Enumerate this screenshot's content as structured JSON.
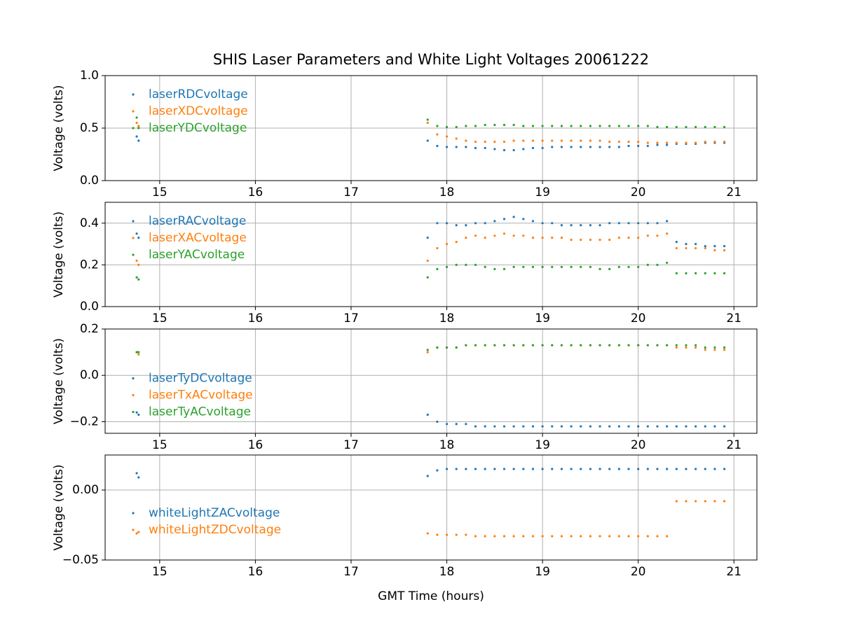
{
  "chart_data": [
    {
      "type": "scatter",
      "title": "SHIS Laser Parameters and White Light Voltages 20061222",
      "ylabel": "Voltage (volts)",
      "x": [
        14.76,
        14.78,
        17.8,
        17.9,
        18.0,
        18.1,
        18.2,
        18.3,
        18.4,
        18.5,
        18.6,
        18.7,
        18.8,
        18.9,
        19.0,
        19.1,
        19.2,
        19.3,
        19.4,
        19.5,
        19.6,
        19.7,
        19.8,
        19.9,
        20.0,
        20.1,
        20.2,
        20.3,
        20.4,
        20.5,
        20.6,
        20.7,
        20.8,
        20.9
      ],
      "xlim": [
        14.43,
        21.24
      ],
      "xticks": [
        15,
        16,
        17,
        18,
        19,
        20,
        21
      ],
      "ylim": [
        0,
        1
      ],
      "yticks": [
        {
          "value": 0,
          "label": "0.0"
        },
        {
          "value": 0.5,
          "label": "0.5"
        },
        {
          "value": 1,
          "label": "1.0"
        }
      ],
      "grid": true,
      "legend": "upper left",
      "series": [
        {
          "name": "laserRDCvoltage",
          "color": "#1f77b4",
          "values": [
            0.42,
            0.38,
            0.38,
            0.33,
            0.32,
            0.32,
            0.32,
            0.31,
            0.31,
            0.3,
            0.29,
            0.29,
            0.3,
            0.31,
            0.31,
            0.32,
            0.32,
            0.32,
            0.32,
            0.32,
            0.32,
            0.32,
            0.32,
            0.33,
            0.33,
            0.33,
            0.34,
            0.34,
            0.35,
            0.35,
            0.35,
            0.36,
            0.36,
            0.36
          ]
        },
        {
          "name": "laserXDCvoltage",
          "color": "#ff7f0e",
          "values": [
            0.55,
            0.52,
            0.55,
            0.44,
            0.42,
            0.4,
            0.38,
            0.37,
            0.37,
            0.37,
            0.37,
            0.38,
            0.38,
            0.38,
            0.38,
            0.38,
            0.38,
            0.38,
            0.38,
            0.38,
            0.38,
            0.37,
            0.37,
            0.37,
            0.37,
            0.36,
            0.36,
            0.36,
            0.36,
            0.36,
            0.36,
            0.37,
            0.37,
            0.37
          ]
        },
        {
          "name": "laserYDCvoltage",
          "color": "#2ca02c",
          "values": [
            0.6,
            0.5,
            0.58,
            0.52,
            0.51,
            0.51,
            0.52,
            0.52,
            0.53,
            0.53,
            0.53,
            0.53,
            0.52,
            0.52,
            0.52,
            0.52,
            0.52,
            0.52,
            0.52,
            0.52,
            0.52,
            0.52,
            0.52,
            0.52,
            0.52,
            0.52,
            0.51,
            0.51,
            0.51,
            0.51,
            0.51,
            0.51,
            0.51,
            0.51
          ]
        }
      ]
    },
    {
      "type": "scatter",
      "ylabel": "Voltage (volts)",
      "x": [
        14.76,
        14.78,
        17.8,
        17.9,
        18.0,
        18.1,
        18.2,
        18.3,
        18.4,
        18.5,
        18.6,
        18.7,
        18.8,
        18.9,
        19.0,
        19.1,
        19.2,
        19.3,
        19.4,
        19.5,
        19.6,
        19.7,
        19.8,
        19.9,
        20.0,
        20.1,
        20.2,
        20.3,
        20.4,
        20.5,
        20.6,
        20.7,
        20.8,
        20.9
      ],
      "xlim": [
        14.43,
        21.24
      ],
      "xticks": [
        15,
        16,
        17,
        18,
        19,
        20,
        21
      ],
      "ylim": [
        0,
        0.5
      ],
      "yticks": [
        {
          "value": 0,
          "label": "0.0"
        },
        0.2,
        0.4
      ],
      "grid": true,
      "legend": "upper left",
      "series": [
        {
          "name": "laserRACvoltage",
          "color": "#1f77b4",
          "values": [
            0.35,
            0.33,
            0.33,
            0.4,
            0.4,
            0.39,
            0.39,
            0.4,
            0.4,
            0.41,
            0.42,
            0.43,
            0.42,
            0.41,
            0.4,
            0.4,
            0.39,
            0.39,
            0.39,
            0.39,
            0.39,
            0.4,
            0.4,
            0.4,
            0.4,
            0.4,
            0.4,
            0.41,
            0.31,
            0.3,
            0.3,
            0.29,
            0.29,
            0.29
          ]
        },
        {
          "name": "laserXACvoltage",
          "color": "#ff7f0e",
          "values": [
            0.22,
            0.2,
            0.22,
            0.28,
            0.3,
            0.31,
            0.33,
            0.34,
            0.33,
            0.34,
            0.35,
            0.34,
            0.34,
            0.33,
            0.33,
            0.33,
            0.33,
            0.32,
            0.32,
            0.32,
            0.32,
            0.32,
            0.33,
            0.33,
            0.33,
            0.34,
            0.34,
            0.35,
            0.28,
            0.28,
            0.28,
            0.28,
            0.27,
            0.27
          ]
        },
        {
          "name": "laserYACvoltage",
          "color": "#2ca02c",
          "values": [
            0.14,
            0.13,
            0.14,
            0.18,
            0.19,
            0.2,
            0.2,
            0.2,
            0.19,
            0.18,
            0.18,
            0.19,
            0.19,
            0.19,
            0.19,
            0.19,
            0.19,
            0.19,
            0.19,
            0.19,
            0.18,
            0.18,
            0.19,
            0.19,
            0.19,
            0.2,
            0.2,
            0.21,
            0.16,
            0.16,
            0.16,
            0.16,
            0.16,
            0.16
          ]
        }
      ]
    },
    {
      "type": "scatter",
      "ylabel": "Voltage (volts)",
      "x": [
        14.76,
        14.78,
        17.8,
        17.9,
        18.0,
        18.1,
        18.2,
        18.3,
        18.4,
        18.5,
        18.6,
        18.7,
        18.8,
        18.9,
        19.0,
        19.1,
        19.2,
        19.3,
        19.4,
        19.5,
        19.6,
        19.7,
        19.8,
        19.9,
        20.0,
        20.1,
        20.2,
        20.3,
        20.4,
        20.5,
        20.6,
        20.7,
        20.8,
        20.9
      ],
      "xlim": [
        14.43,
        21.24
      ],
      "xticks": [
        15,
        16,
        17,
        18,
        19,
        20,
        21
      ],
      "ylim": [
        -0.25,
        0.2
      ],
      "yticks": [
        {
          "value": -0.2,
          "label": "−0.2"
        },
        {
          "value": 0,
          "label": "0.0"
        },
        0.2
      ],
      "grid": true,
      "legend": "center left",
      "series": [
        {
          "name": "laserTyDCvoltage",
          "color": "#1f77b4",
          "values": [
            -0.16,
            -0.17,
            -0.17,
            -0.2,
            -0.21,
            -0.21,
            -0.21,
            -0.22,
            -0.22,
            -0.22,
            -0.22,
            -0.22,
            -0.22,
            -0.22,
            -0.22,
            -0.22,
            -0.22,
            -0.22,
            -0.22,
            -0.22,
            -0.22,
            -0.22,
            -0.22,
            -0.22,
            -0.22,
            -0.22,
            -0.22,
            -0.22,
            -0.22,
            -0.22,
            -0.22,
            -0.22,
            -0.22,
            -0.22
          ]
        },
        {
          "name": "laserTxACvoltage",
          "color": "#ff7f0e",
          "values": [
            0.1,
            0.09,
            0.1,
            0.12,
            0.12,
            0.12,
            0.13,
            0.13,
            0.13,
            0.13,
            0.13,
            0.13,
            0.13,
            0.13,
            0.13,
            0.13,
            0.13,
            0.13,
            0.13,
            0.13,
            0.13,
            0.13,
            0.13,
            0.13,
            0.13,
            0.13,
            0.13,
            0.13,
            0.12,
            0.12,
            0.12,
            0.11,
            0.11,
            0.11
          ]
        },
        {
          "name": "laserTyACvoltage",
          "color": "#2ca02c",
          "values": [
            0.1,
            0.1,
            0.11,
            0.12,
            0.12,
            0.12,
            0.13,
            0.13,
            0.13,
            0.13,
            0.13,
            0.13,
            0.13,
            0.13,
            0.13,
            0.13,
            0.13,
            0.13,
            0.13,
            0.13,
            0.13,
            0.13,
            0.13,
            0.13,
            0.13,
            0.13,
            0.13,
            0.13,
            0.13,
            0.13,
            0.13,
            0.12,
            0.12,
            0.12
          ]
        }
      ]
    },
    {
      "type": "scatter",
      "ylabel": "Voltage (volts)",
      "xlabel": "GMT Time (hours)",
      "x": [
        14.76,
        14.78,
        17.8,
        17.9,
        18.0,
        18.1,
        18.2,
        18.3,
        18.4,
        18.5,
        18.6,
        18.7,
        18.8,
        18.9,
        19.0,
        19.1,
        19.2,
        19.3,
        19.4,
        19.5,
        19.6,
        19.7,
        19.8,
        19.9,
        20.0,
        20.1,
        20.2,
        20.3,
        20.4,
        20.5,
        20.6,
        20.7,
        20.8,
        20.9
      ],
      "xlim": [
        14.43,
        21.24
      ],
      "xticks": [
        15,
        16,
        17,
        18,
        19,
        20,
        21
      ],
      "ylim": [
        -0.05,
        0.025
      ],
      "yticks": [
        {
          "value": -0.05,
          "label": "−0.05"
        },
        {
          "value": 0,
          "label": "0.00"
        }
      ],
      "grid": true,
      "legend": "center left",
      "series": [
        {
          "name": "whiteLightZACvoltage",
          "color": "#1f77b4",
          "values": [
            0.012,
            0.009,
            0.01,
            0.014,
            0.015,
            0.015,
            0.015,
            0.015,
            0.015,
            0.015,
            0.015,
            0.015,
            0.015,
            0.015,
            0.015,
            0.015,
            0.015,
            0.015,
            0.015,
            0.015,
            0.015,
            0.015,
            0.015,
            0.015,
            0.015,
            0.015,
            0.015,
            0.015,
            0.015,
            0.015,
            0.015,
            0.015,
            0.015,
            0.015
          ]
        },
        {
          "name": "whiteLightZDCvoltage",
          "color": "#ff7f0e",
          "values": [
            -0.031,
            -0.03,
            -0.031,
            -0.032,
            -0.032,
            -0.032,
            -0.032,
            -0.033,
            -0.033,
            -0.033,
            -0.033,
            -0.033,
            -0.033,
            -0.033,
            -0.033,
            -0.033,
            -0.033,
            -0.033,
            -0.033,
            -0.033,
            -0.033,
            -0.033,
            -0.033,
            -0.033,
            -0.033,
            -0.033,
            -0.033,
            -0.033,
            -0.008,
            -0.008,
            -0.008,
            -0.008,
            -0.008,
            -0.008
          ]
        }
      ]
    }
  ]
}
